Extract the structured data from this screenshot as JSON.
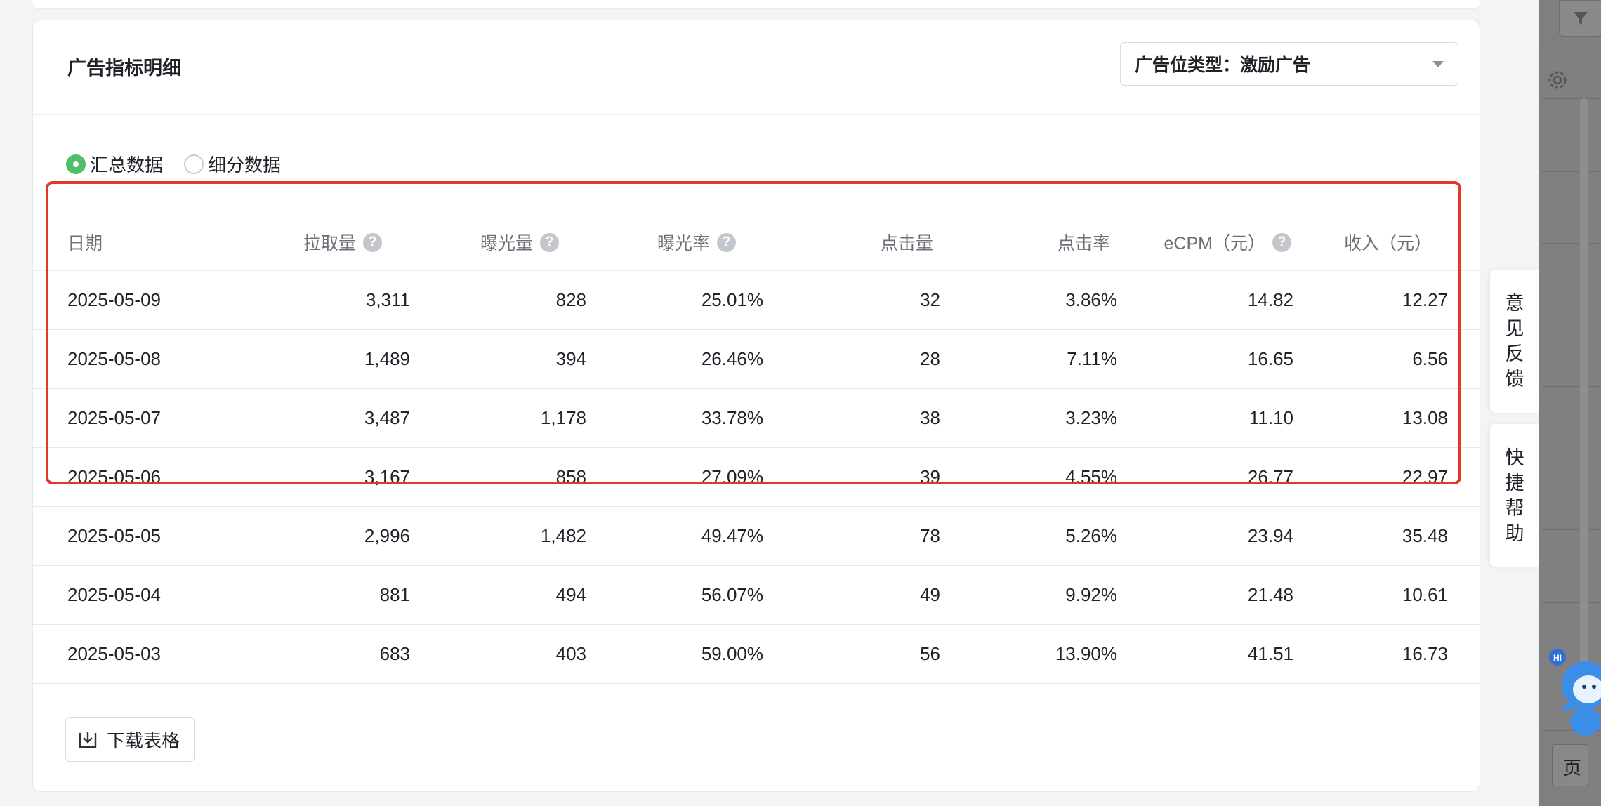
{
  "card": {
    "title": "广告指标明细",
    "placement_type_select": "广告位类型：激励广告"
  },
  "view_mode": {
    "options": [
      {
        "label": "汇总数据",
        "checked": true
      },
      {
        "label": "细分数据",
        "checked": false
      }
    ]
  },
  "table": {
    "columns": [
      "日期",
      "拉取量",
      "曝光量",
      "曝光率",
      "点击量",
      "点击率",
      "eCPM（元）",
      "收入（元）"
    ],
    "rows": [
      [
        "2025-05-09",
        "3,311",
        "828",
        "25.01%",
        "32",
        "3.86%",
        "14.82",
        "12.27"
      ],
      [
        "2025-05-08",
        "1,489",
        "394",
        "26.46%",
        "28",
        "7.11%",
        "16.65",
        "6.56"
      ],
      [
        "2025-05-07",
        "3,487",
        "1,178",
        "33.78%",
        "38",
        "3.23%",
        "11.10",
        "13.08"
      ],
      [
        "2025-05-06",
        "3,167",
        "858",
        "27.09%",
        "39",
        "4.55%",
        "26.77",
        "22.97"
      ],
      [
        "2025-05-05",
        "2,996",
        "1,482",
        "49.47%",
        "78",
        "5.26%",
        "23.94",
        "35.48"
      ],
      [
        "2025-05-04",
        "881",
        "494",
        "56.07%",
        "49",
        "9.92%",
        "21.48",
        "10.61"
      ],
      [
        "2025-05-03",
        "683",
        "403",
        "59.00%",
        "56",
        "13.90%",
        "41.51",
        "16.73"
      ]
    ]
  },
  "download_label": "下载表格",
  "side_tabs": {
    "feedback": [
      "意",
      "见",
      "反",
      "馈"
    ],
    "help": [
      "快",
      "捷",
      "帮",
      "助"
    ]
  },
  "mascot_badge": "HI",
  "right_panel": {
    "page_label": "页"
  },
  "colors": {
    "accent_green": "#4fbf6a",
    "highlight_red": "#e0392b"
  }
}
